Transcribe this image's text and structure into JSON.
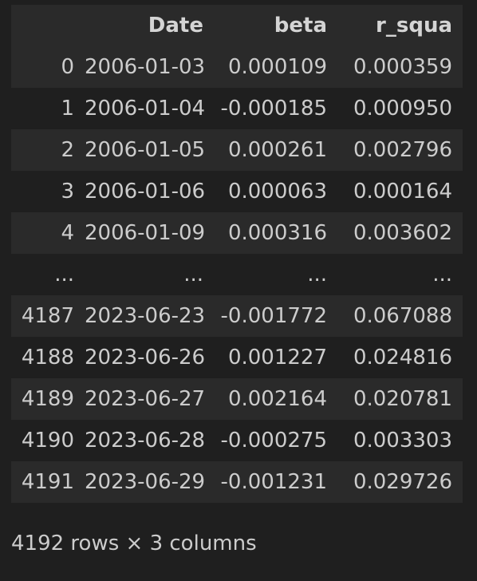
{
  "table": {
    "columns": [
      "",
      "Date",
      "beta",
      "r_squa"
    ],
    "rows": [
      [
        "0",
        "2006-01-03",
        "0.000109",
        "0.000359"
      ],
      [
        "1",
        "2006-01-04",
        "-0.000185",
        "0.000950"
      ],
      [
        "2",
        "2006-01-05",
        "0.000261",
        "0.002796"
      ],
      [
        "3",
        "2006-01-06",
        "0.000063",
        "0.000164"
      ],
      [
        "4",
        "2006-01-09",
        "0.000316",
        "0.003602"
      ],
      [
        "...",
        "...",
        "...",
        "..."
      ],
      [
        "4187",
        "2023-06-23",
        "-0.001772",
        "0.067088"
      ],
      [
        "4188",
        "2023-06-26",
        "0.001227",
        "0.024816"
      ],
      [
        "4189",
        "2023-06-27",
        "0.002164",
        "0.020781"
      ],
      [
        "4190",
        "2023-06-28",
        "-0.000275",
        "0.003303"
      ],
      [
        "4191",
        "2023-06-29",
        "-0.001231",
        "0.029726"
      ]
    ]
  },
  "footer": {
    "shape_text": "4192 rows × 3 columns"
  }
}
